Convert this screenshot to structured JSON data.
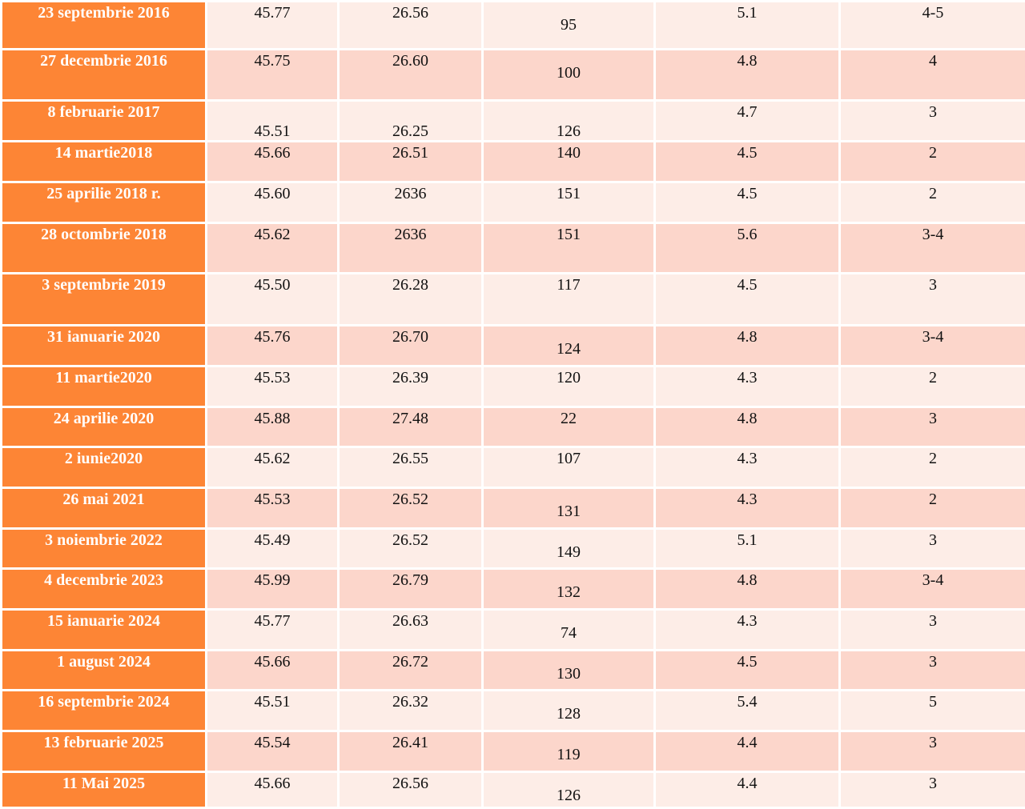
{
  "colors": {
    "date_bg": "#FD8535",
    "row_light": "#FDEDE7",
    "row_dark": "#FCD6CB"
  },
  "rows": [
    [
      "23 septembrie 2016",
      "45.77",
      "26.56",
      "95",
      "5.1",
      "4-5"
    ],
    [
      "27 decembrie 2016",
      "45.75",
      "26.60",
      "100",
      "4.8",
      "4"
    ],
    [
      "8 februarie 2017",
      "45.51",
      "26.25",
      "126",
      "4.7",
      "3"
    ],
    [
      "14 martie2018",
      "45.66",
      "26.51",
      "140",
      "4.5",
      "2"
    ],
    [
      "25 aprilie 2018 r.",
      "45.60",
      "2636",
      "151",
      "4.5",
      "2"
    ],
    [
      "28  octombrie 2018",
      "45.62",
      "2636",
      "151",
      "5.6",
      "3-4"
    ],
    [
      "3 septembrie 2019",
      "45.50",
      "26.28",
      "117",
      "4.5",
      "3"
    ],
    [
      "31 ianuarie 2020",
      "45.76",
      "26.70",
      "124",
      "4.8",
      "3-4"
    ],
    [
      "11 martie2020",
      "45.53",
      "26.39",
      "120",
      "4.3",
      "2"
    ],
    [
      "24 aprilie 2020",
      "45.88",
      "27.48",
      "22",
      "4.8",
      "3"
    ],
    [
      "2 iunie2020",
      "45.62",
      "26.55",
      "107",
      "4.3",
      "2"
    ],
    [
      "26 mai 2021",
      "45.53",
      "26.52",
      "131",
      "4.3",
      "2"
    ],
    [
      "3 noiembrie 2022",
      "45.49",
      "26.52",
      "149",
      "5.1",
      "3"
    ],
    [
      "4 decembrie 2023",
      "45.99",
      "26.79",
      "132",
      "4.8",
      "3-4"
    ],
    [
      "15 ianuarie 2024",
      "45.77",
      "26.63",
      "74",
      "4.3",
      "3"
    ],
    [
      "1 august 2024",
      "45.66",
      "26.72",
      "130",
      "4.5",
      "3"
    ],
    [
      "16 septembrie 2024",
      "45.51",
      "26.32",
      "128",
      "5.4",
      "5"
    ],
    [
      "13 februarie 2025",
      "45.54",
      "26.41",
      "119",
      "4.4",
      "3"
    ],
    [
      "11  Mai 2025",
      "45.66",
      "26.56",
      "126",
      "4.4",
      "3"
    ]
  ]
}
